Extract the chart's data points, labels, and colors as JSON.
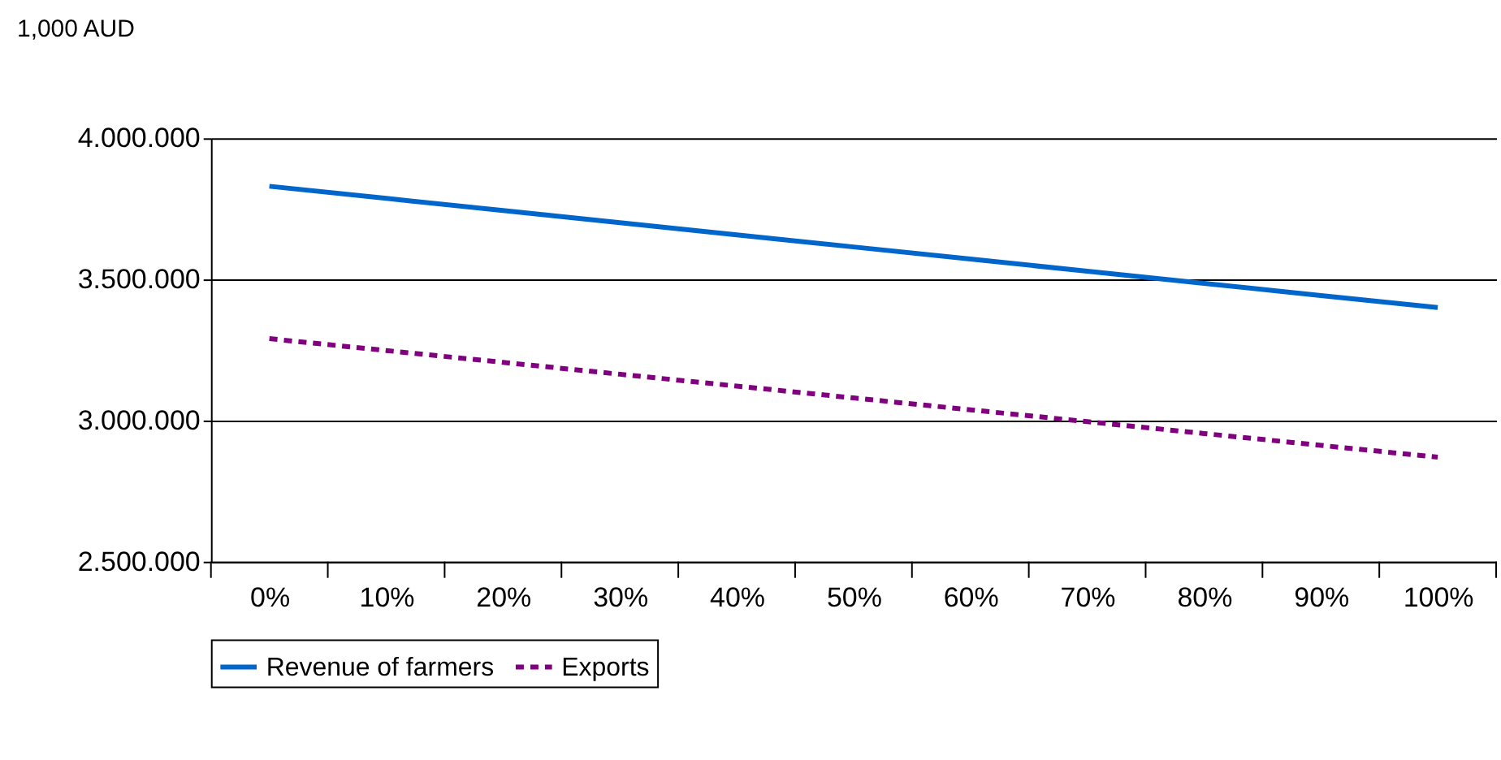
{
  "chart_data": {
    "type": "line",
    "ylabel": "1,000 AUD",
    "categories": [
      "0%",
      "10%",
      "20%",
      "30%",
      "40%",
      "50%",
      "60%",
      "70%",
      "80%",
      "90%",
      "100%"
    ],
    "series": [
      {
        "name": "Revenue of farmers",
        "color": "#0066cc",
        "line_style": "solid",
        "values": [
          3830000,
          3787000,
          3744000,
          3701000,
          3658000,
          3615000,
          3572000,
          3529000,
          3486000,
          3443000,
          3400000
        ]
      },
      {
        "name": "Exports",
        "color": "#800080",
        "line_style": "dashed",
        "values": [
          3290000,
          3248000,
          3206000,
          3164000,
          3122000,
          3080000,
          3038000,
          2996000,
          2954000,
          2912000,
          2870000
        ]
      }
    ],
    "ylim": [
      2500000,
      4000000
    ],
    "yticks": [
      {
        "value": 2500000,
        "label": "2.500.000"
      },
      {
        "value": 3000000,
        "label": "3.000.000"
      },
      {
        "value": 3500000,
        "label": "3.500.000"
      },
      {
        "value": 4000000,
        "label": "4.000.000"
      }
    ],
    "grid": "y",
    "legend": "bottom",
    "marker": "none"
  }
}
